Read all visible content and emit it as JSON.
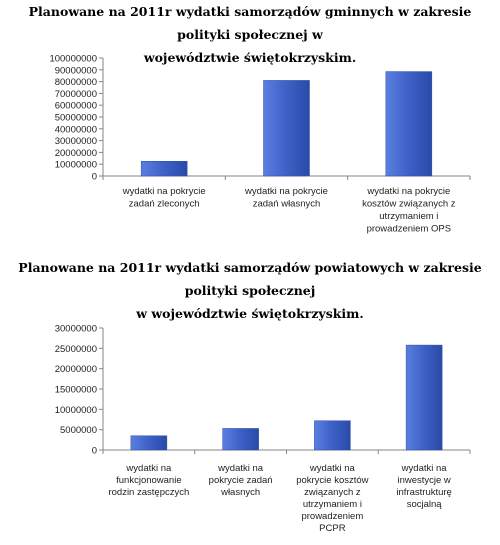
{
  "chart_data": [
    {
      "type": "bar",
      "title": "Planowane na 2011r wydatki samorządów gminnych w zakresie polityki społecznej w województwie świętokrzyskim.",
      "title_lines": [
        "Planowane na 2011r wydatki samorządów gminnych w zakresie polityki społecznej w",
        "województwie świętokrzyskim."
      ],
      "categories": [
        [
          "wydatki na pokrycie",
          "zadań zleconych"
        ],
        [
          "wydatki na pokrycie",
          "zadań własnych"
        ],
        [
          "wydatki na pokrycie",
          "kosztów związanych z",
          "utrzymaniem i",
          "prowadzeniem OPS"
        ]
      ],
      "values": [
        12500000,
        81000000,
        88500000
      ],
      "ylim": [
        0,
        100000000
      ],
      "yticks": [
        "0",
        "10000000",
        "20000000",
        "30000000",
        "40000000",
        "50000000",
        "60000000",
        "70000000",
        "80000000",
        "90000000",
        "100000000"
      ],
      "grid": false,
      "legend": "none",
      "bar_color": "#3f63c9"
    },
    {
      "type": "bar",
      "title": "Planowane na 2011r wydatki samorządów powiatowych w zakresie polityki społecznej w województwie świętokrzyskim.",
      "title_lines": [
        "Planowane na 2011r wydatki samorządów powiatowych w zakresie polityki społecznej",
        "w województwie świętokrzyskim."
      ],
      "categories": [
        [
          "wydatki na",
          "funkcjonowanie",
          "rodzin zastępczych"
        ],
        [
          "wydatki na",
          "pokrycie zadań",
          "własnych"
        ],
        [
          "wydatki na",
          "pokrycie kosztów",
          "związanych z",
          "utrzymaniem i",
          "prowadzeniem",
          "PCPR"
        ],
        [
          "wydatki na",
          "inwestycje w",
          "infrastrukturę",
          "socjalną"
        ]
      ],
      "values": [
        3500000,
        5300000,
        7200000,
        25800000
      ],
      "ylim": [
        0,
        30000000
      ],
      "yticks": [
        "0",
        "5000000",
        "10000000",
        "15000000",
        "20000000",
        "25000000",
        "30000000"
      ],
      "grid": false,
      "legend": "none",
      "bar_color": "#3f63c9"
    }
  ]
}
